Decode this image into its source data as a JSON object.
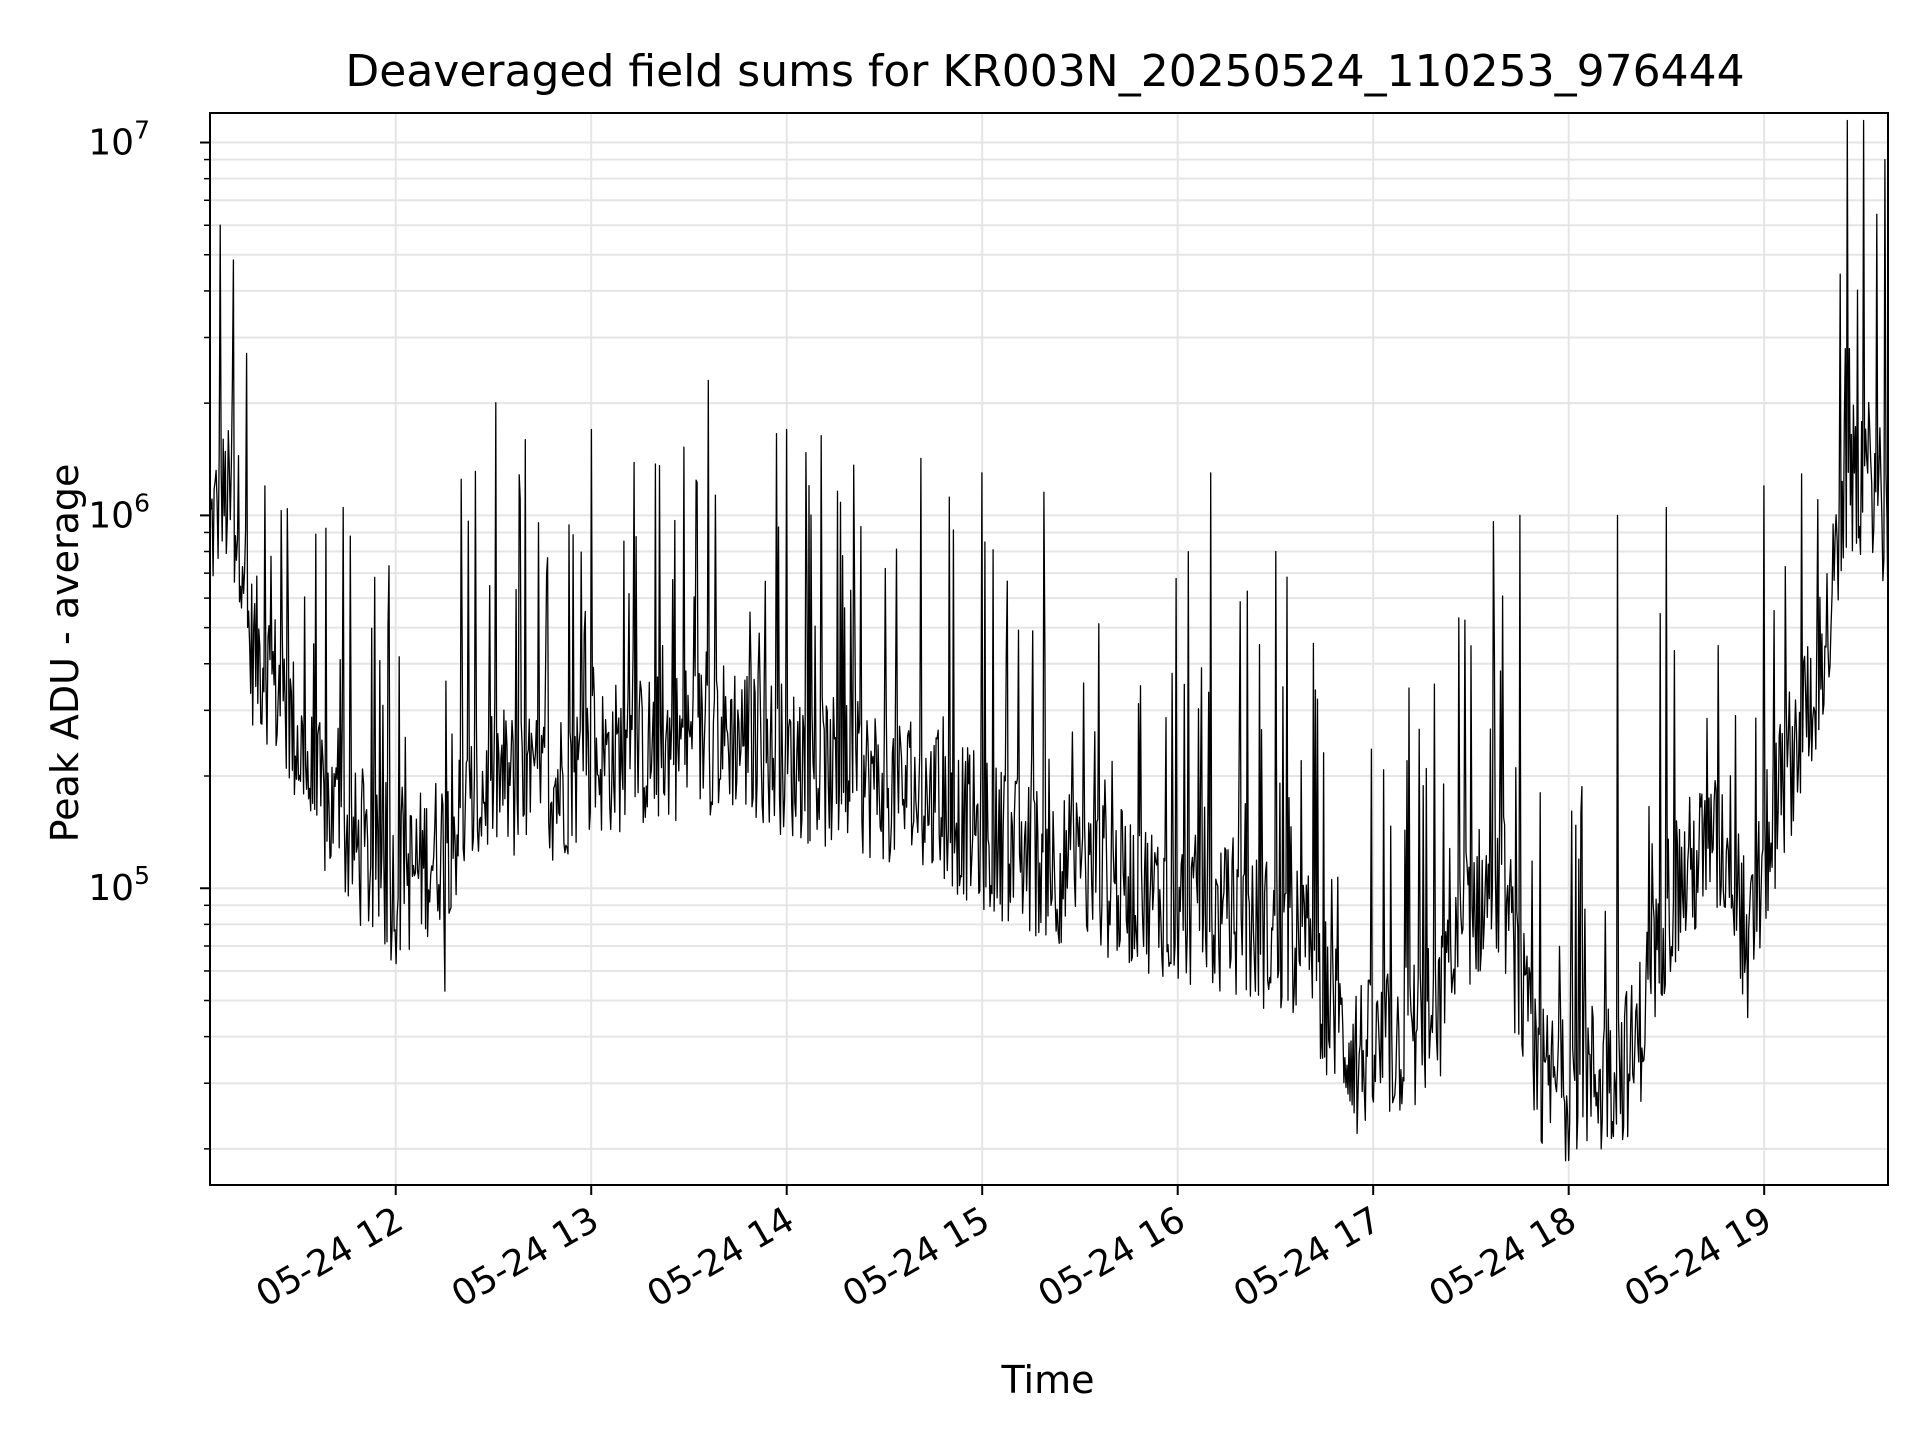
{
  "chart_data": {
    "type": "line",
    "title": "Deaveraged field sums for KR003N_20250524_110253_976444",
    "xlabel": "Time",
    "ylabel": "Peak ADU - average",
    "yscale": "log",
    "grid": true,
    "line_color": "#000000",
    "grid_color": "#e5e5e5",
    "xlim": [
      "05-24 11:03",
      "05-24 19:38"
    ],
    "ylim": [
      16000,
      12000000
    ],
    "x_ticks": [
      "05-24 12",
      "05-24 13",
      "05-24 14",
      "05-24 15",
      "05-24 16",
      "05-24 17",
      "05-24 18",
      "05-24 19"
    ],
    "y_ticks": [
      {
        "base": "10",
        "exp": "5",
        "value": 100000
      },
      {
        "base": "10",
        "exp": "6",
        "value": 1000000
      },
      {
        "base": "10",
        "exp": "7",
        "value": 10000000
      }
    ],
    "series": [
      {
        "x": [
          "05-24 11:03",
          "05-24 11:05",
          "05-24 11:08",
          "05-24 11:10",
          "05-24 11:13",
          "05-24 11:15",
          "05-24 11:20",
          "05-24 11:25",
          "05-24 11:30",
          "05-24 11:35",
          "05-24 11:40",
          "05-24 11:45",
          "05-24 11:50",
          "05-24 11:55",
          "05-24 12:00",
          "05-24 12:10",
          "05-24 12:20",
          "05-24 12:30",
          "05-24 12:40",
          "05-24 12:50",
          "05-24 13:00",
          "05-24 13:15",
          "05-24 13:30",
          "05-24 13:45",
          "05-24 14:00",
          "05-24 14:15",
          "05-24 14:30",
          "05-24 14:45",
          "05-24 15:00",
          "05-24 15:15",
          "05-24 15:30",
          "05-24 15:45",
          "05-24 16:00",
          "05-24 16:15",
          "05-24 16:30",
          "05-24 16:40",
          "05-24 16:50",
          "05-24 17:00",
          "05-24 17:10",
          "05-24 17:20",
          "05-24 17:30",
          "05-24 17:40",
          "05-24 17:50",
          "05-24 18:00",
          "05-24 18:10",
          "05-24 18:20",
          "05-24 18:30",
          "05-24 18:40",
          "05-24 18:50",
          "05-24 18:55",
          "05-24 19:00",
          "05-24 19:05",
          "05-24 19:10",
          "05-24 19:15",
          "05-24 19:20",
          "05-24 19:25",
          "05-24 19:30",
          "05-24 19:35",
          "05-24 19:38"
        ],
        "values": [
          900000,
          1000000,
          1100000,
          1000000,
          900000,
          450000,
          400000,
          320000,
          250000,
          180000,
          160000,
          140000,
          120000,
          110000,
          100000,
          120000,
          150000,
          200000,
          180000,
          190000,
          220000,
          230000,
          250000,
          260000,
          220000,
          200000,
          190000,
          170000,
          140000,
          120000,
          110000,
          100000,
          90000,
          80000,
          75000,
          70000,
          40000,
          35000,
          40000,
          45000,
          90000,
          100000,
          30000,
          30000,
          32000,
          35000,
          90000,
          120000,
          130000,
          65000,
          120000,
          180000,
          250000,
          350000,
          500000,
          1200000,
          1250000,
          1300000,
          800000
        ],
        "spikes_high": [
          {
            "x": "05-24 11:06",
            "value": 6000000
          },
          {
            "x": "05-24 11:10",
            "value": 2300000
          },
          {
            "x": "05-24 11:20",
            "value": 1200000
          },
          {
            "x": "05-24 11:44",
            "value": 1050000
          },
          {
            "x": "05-24 12:20",
            "value": 1250000
          },
          {
            "x": "05-24 13:00",
            "value": 1700000
          },
          {
            "x": "05-24 14:00",
            "value": 1700000
          },
          {
            "x": "05-24 15:00",
            "value": 1300000
          },
          {
            "x": "05-24 16:10",
            "value": 1300000
          },
          {
            "x": "05-24 16:30",
            "value": 800000
          },
          {
            "x": "05-24 17:45",
            "value": 1000000
          },
          {
            "x": "05-24 18:15",
            "value": 1000000
          },
          {
            "x": "05-24 18:30",
            "value": 1050000
          },
          {
            "x": "05-24 19:00",
            "value": 1200000
          },
          {
            "x": "05-24 19:25",
            "value": 2800000
          },
          {
            "x": "05-24 19:37",
            "value": 9000000
          }
        ],
        "dips_low": [
          {
            "x": "05-24 12:15",
            "value": 53000
          },
          {
            "x": "05-24 16:55",
            "value": 22000
          },
          {
            "x": "05-24 18:10",
            "value": 20000
          },
          {
            "x": "05-24 18:55",
            "value": 45000
          }
        ]
      }
    ]
  }
}
